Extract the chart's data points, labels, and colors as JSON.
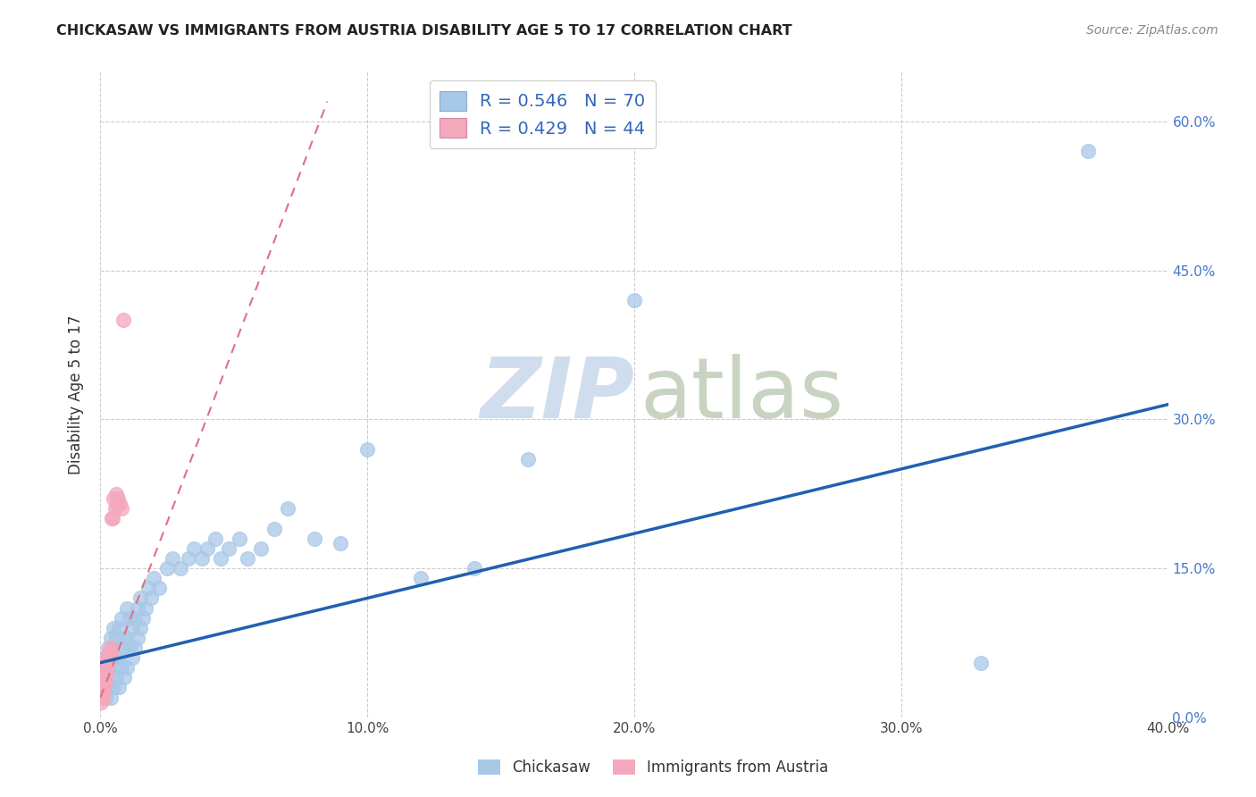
{
  "title": "CHICKASAW VS IMMIGRANTS FROM AUSTRIA DISABILITY AGE 5 TO 17 CORRELATION CHART",
  "source": "Source: ZipAtlas.com",
  "ylabel": "Disability Age 5 to 17",
  "R1": 0.546,
  "N1": 70,
  "R2": 0.429,
  "N2": 44,
  "color_blue": "#A8C8E8",
  "color_pink": "#F4A8BC",
  "trend_blue": "#2060B0",
  "trend_pink": "#E07080",
  "watermark_zip": "#C8D8EC",
  "watermark_atlas": "#C0CCB8",
  "legend_label1": "Chickasaw",
  "legend_label2": "Immigrants from Austria",
  "xlim": [
    0.0,
    0.4
  ],
  "ylim": [
    0.0,
    0.65
  ],
  "xticks": [
    0.0,
    0.1,
    0.2,
    0.3,
    0.4
  ],
  "yticks": [
    0.0,
    0.15,
    0.3,
    0.45,
    0.6
  ],
  "chickasaw_x": [
    0.001,
    0.001,
    0.002,
    0.002,
    0.002,
    0.003,
    0.003,
    0.003,
    0.004,
    0.004,
    0.004,
    0.004,
    0.005,
    0.005,
    0.005,
    0.005,
    0.006,
    0.006,
    0.006,
    0.007,
    0.007,
    0.007,
    0.008,
    0.008,
    0.008,
    0.009,
    0.009,
    0.01,
    0.01,
    0.01,
    0.011,
    0.011,
    0.012,
    0.012,
    0.013,
    0.013,
    0.014,
    0.014,
    0.015,
    0.015,
    0.016,
    0.017,
    0.018,
    0.019,
    0.02,
    0.022,
    0.025,
    0.027,
    0.03,
    0.033,
    0.035,
    0.038,
    0.04,
    0.043,
    0.045,
    0.048,
    0.052,
    0.055,
    0.06,
    0.065,
    0.07,
    0.08,
    0.09,
    0.1,
    0.12,
    0.14,
    0.16,
    0.2,
    0.33,
    0.37
  ],
  "chickasaw_y": [
    0.03,
    0.05,
    0.02,
    0.04,
    0.06,
    0.03,
    0.05,
    0.07,
    0.02,
    0.04,
    0.06,
    0.08,
    0.03,
    0.05,
    0.07,
    0.09,
    0.04,
    0.06,
    0.08,
    0.03,
    0.06,
    0.09,
    0.05,
    0.07,
    0.1,
    0.04,
    0.08,
    0.05,
    0.08,
    0.11,
    0.07,
    0.1,
    0.06,
    0.09,
    0.07,
    0.1,
    0.08,
    0.11,
    0.09,
    0.12,
    0.1,
    0.11,
    0.13,
    0.12,
    0.14,
    0.13,
    0.15,
    0.16,
    0.15,
    0.16,
    0.17,
    0.16,
    0.17,
    0.18,
    0.16,
    0.17,
    0.18,
    0.16,
    0.17,
    0.19,
    0.21,
    0.18,
    0.175,
    0.27,
    0.14,
    0.15,
    0.26,
    0.42,
    0.055,
    0.57
  ],
  "austria_x": [
    0.0002,
    0.0003,
    0.0004,
    0.0005,
    0.0005,
    0.0006,
    0.0007,
    0.0007,
    0.0008,
    0.0009,
    0.001,
    0.001,
    0.0011,
    0.0012,
    0.0013,
    0.0014,
    0.0015,
    0.0016,
    0.0017,
    0.0018,
    0.0019,
    0.002,
    0.0021,
    0.0022,
    0.0023,
    0.0024,
    0.0025,
    0.0026,
    0.0028,
    0.003,
    0.0032,
    0.0035,
    0.0037,
    0.004,
    0.0043,
    0.0046,
    0.005,
    0.0054,
    0.0058,
    0.0062,
    0.0067,
    0.0072,
    0.0078,
    0.0084
  ],
  "austria_y": [
    0.02,
    0.015,
    0.025,
    0.02,
    0.03,
    0.025,
    0.02,
    0.035,
    0.025,
    0.03,
    0.025,
    0.04,
    0.035,
    0.03,
    0.04,
    0.035,
    0.045,
    0.04,
    0.045,
    0.04,
    0.05,
    0.045,
    0.05,
    0.055,
    0.05,
    0.055,
    0.06,
    0.055,
    0.06,
    0.065,
    0.06,
    0.065,
    0.07,
    0.065,
    0.2,
    0.2,
    0.22,
    0.21,
    0.225,
    0.215,
    0.22,
    0.215,
    0.21,
    0.4
  ],
  "blue_trendline_x": [
    0.0,
    0.4
  ],
  "blue_trendline_y": [
    0.055,
    0.315
  ],
  "pink_trendline_x": [
    0.0,
    0.085
  ],
  "pink_trendline_y": [
    0.02,
    0.62
  ]
}
